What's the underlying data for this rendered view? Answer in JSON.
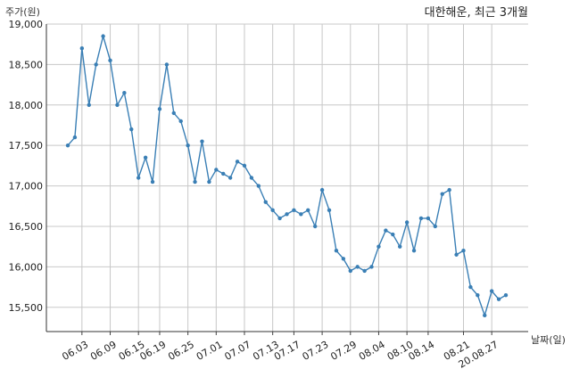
{
  "chart_data": {
    "type": "line",
    "title": "대한해운, 최근 3개월",
    "ylabel": "주가(원)",
    "xlabel": "날짜(일)",
    "ylim": [
      15200,
      19000
    ],
    "yticks": [
      15500,
      16000,
      16500,
      17000,
      17500,
      18000,
      18500,
      19000
    ],
    "ytick_labels": [
      "15,500",
      "16,000",
      "16,500",
      "17,000",
      "17,500",
      "18,000",
      "18,500",
      "19,000"
    ],
    "xtick_labels": [
      "06.03",
      "06.09",
      "06.15",
      "06.19",
      "06.25",
      "07.01",
      "07.07",
      "07.13",
      "07.17",
      "07.23",
      "07.29",
      "08.04",
      "08.10",
      "08.14",
      "08.21",
      "20.08.27"
    ],
    "xtick_index": [
      2,
      6,
      10,
      13,
      17,
      21,
      25,
      29,
      32,
      36,
      40,
      44,
      48,
      51,
      56,
      60
    ],
    "grid": true,
    "color": "#3a7fb5",
    "series": [
      {
        "values": [
          17500,
          17600,
          18700,
          18000,
          18500,
          18850,
          18550,
          18000,
          18150,
          17700,
          17100,
          17350,
          17050,
          17950,
          18500,
          17900,
          17800,
          17500,
          17050,
          17550,
          17050,
          17200,
          17150,
          17100,
          17300,
          17250,
          17100,
          17000,
          16800,
          16700,
          16600,
          16650,
          16700,
          16650,
          16700,
          16500,
          16950,
          16700,
          16200,
          16100,
          15950,
          16000,
          15950,
          16000,
          16250,
          16450,
          16400,
          16250,
          16550,
          16200,
          16600,
          16600,
          16500,
          16900,
          16950,
          16150,
          16200,
          15750,
          15650,
          15400,
          15700,
          15600,
          15650
        ]
      }
    ]
  }
}
